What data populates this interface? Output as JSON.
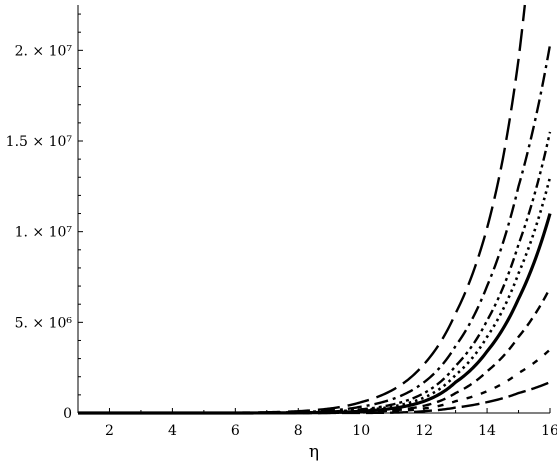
{
  "chart_data": {
    "type": "line",
    "title": "",
    "xlabel": "η",
    "ylabel": "",
    "xlim": [
      1,
      16
    ],
    "ylim": [
      0,
      22500000
    ],
    "grid": false,
    "legend": "none",
    "x_ticks": [
      {
        "value": 2,
        "label": "2"
      },
      {
        "value": 4,
        "label": "4"
      },
      {
        "value": 6,
        "label": "6"
      },
      {
        "value": 8,
        "label": "8"
      },
      {
        "value": 10,
        "label": "10"
      },
      {
        "value": 12,
        "label": "12"
      },
      {
        "value": 14,
        "label": "14"
      },
      {
        "value": 16,
        "label": "16"
      }
    ],
    "y_ticks": [
      {
        "value": 0,
        "label": "0"
      },
      {
        "value": 5000000,
        "label": "5. × 10⁶"
      },
      {
        "value": 10000000,
        "label": "1. × 10⁷"
      },
      {
        "value": 15000000,
        "label": "1.5 × 10⁷"
      },
      {
        "value": 20000000,
        "label": "2. × 10⁷"
      }
    ],
    "series": [
      {
        "style": "longdash",
        "x": [
          8,
          10,
          12,
          13,
          14,
          14.5,
          15,
          15.2
        ],
        "y": [
          100000,
          600000,
          2700000,
          5500000,
          10200000,
          14000000,
          19500000,
          22500000
        ]
      },
      {
        "style": "dashdot",
        "x": [
          8,
          10,
          12,
          13,
          14,
          15,
          16
        ],
        "y": [
          50000,
          350000,
          1700000,
          3700000,
          7000000,
          12500000,
          20300000
        ]
      },
      {
        "style": "dashdotdot",
        "x": [
          8,
          10,
          12,
          13,
          14,
          15,
          16
        ],
        "y": [
          30000,
          200000,
          1100000,
          2600000,
          5100000,
          9300000,
          15500000
        ]
      },
      {
        "style": "dotted",
        "x": [
          8,
          10,
          12,
          13,
          14,
          15,
          16
        ],
        "y": [
          20000,
          150000,
          850000,
          2100000,
          4200000,
          7700000,
          13000000
        ]
      },
      {
        "style": "solid",
        "x": [
          8,
          10,
          12,
          13,
          14,
          15,
          16
        ],
        "y": [
          10000,
          100000,
          650000,
          1700000,
          3400000,
          6300000,
          11000000
        ]
      },
      {
        "style": "dashed",
        "x": [
          10,
          12,
          13,
          14,
          15,
          16
        ],
        "y": [
          50000,
          400000,
          1100000,
          2300000,
          4200000,
          6900000
        ]
      },
      {
        "style": "dashed-sparse",
        "x": [
          10,
          12,
          13,
          14,
          15,
          16
        ],
        "y": [
          30000,
          250000,
          650000,
          1200000,
          2200000,
          3500000
        ]
      },
      {
        "style": "longdash-low",
        "x": [
          11,
          12,
          13,
          14,
          15,
          16
        ],
        "y": [
          20000,
          100000,
          300000,
          600000,
          1100000,
          1700000
        ]
      }
    ]
  }
}
